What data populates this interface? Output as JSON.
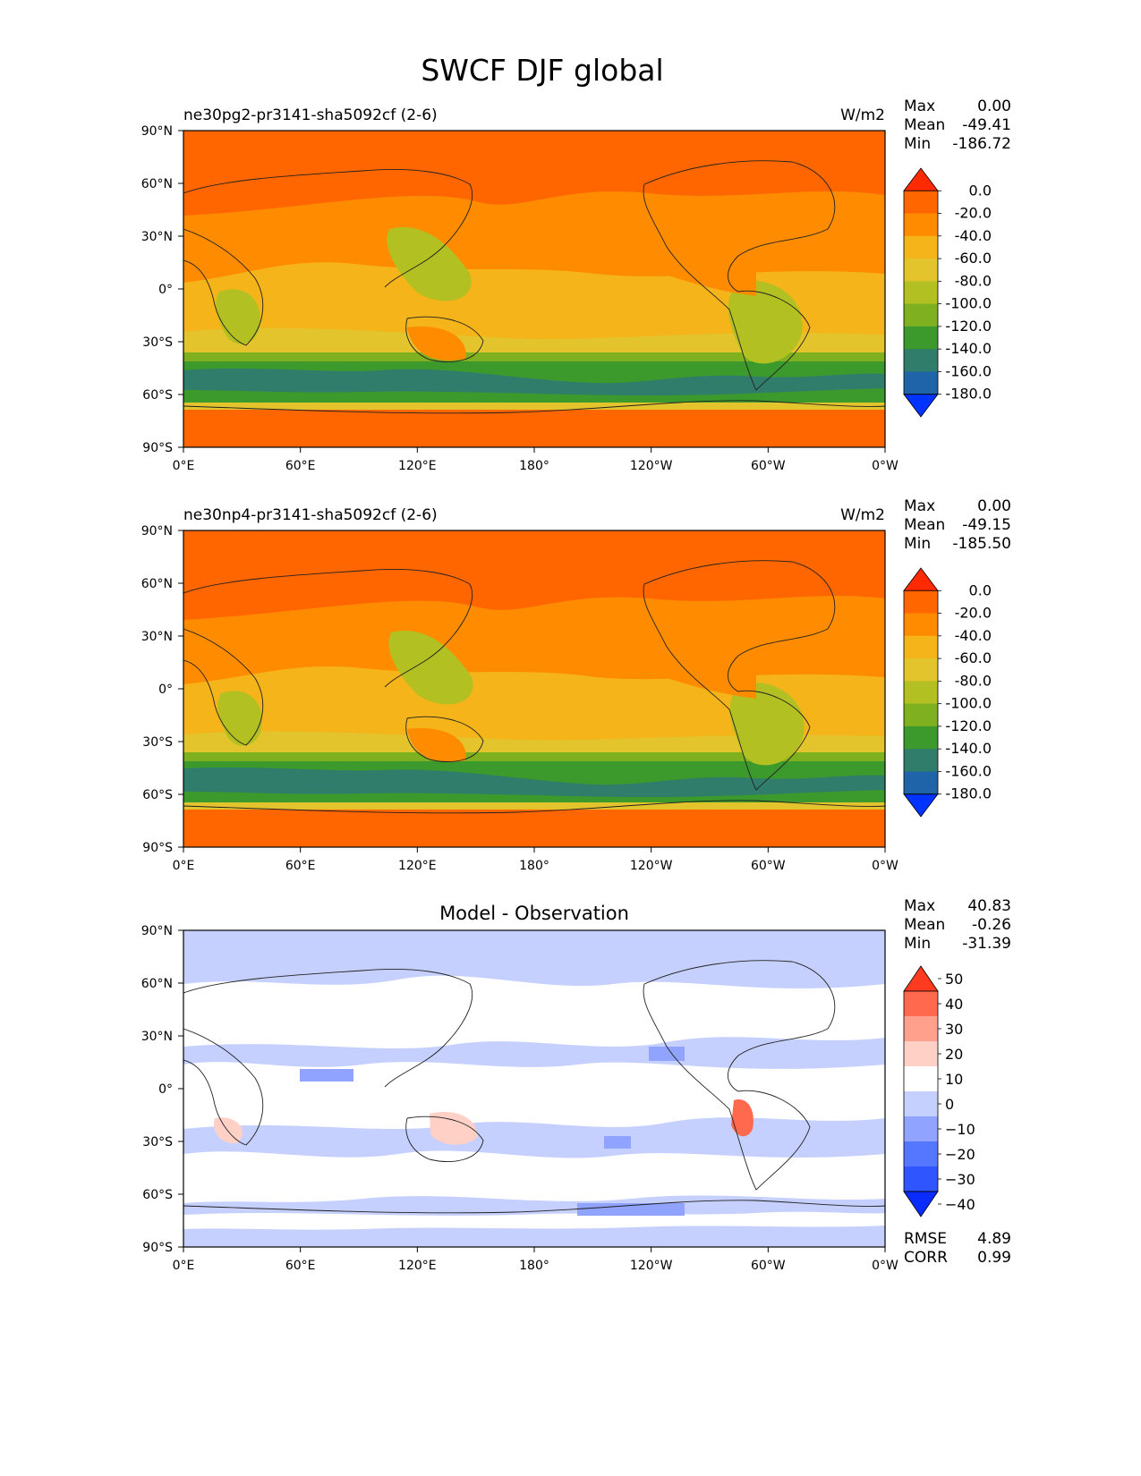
{
  "title": "SWCF DJF global",
  "panels": [
    {
      "name": "panel-test",
      "subtitle_left": "ne30pg2-pr3141-sha5092cf (2-6)",
      "subtitle_center": "",
      "units": "W/m2",
      "stats": [
        {
          "label": "Max",
          "value": "0.00"
        },
        {
          "label": "Mean",
          "value": "-49.41"
        },
        {
          "label": "Min",
          "value": "-186.72"
        }
      ],
      "colorbar": {
        "type": "abs",
        "labels": [
          "0.0",
          "-20.0",
          "-40.0",
          "-60.0",
          "-80.0",
          "-100.0",
          "-120.0",
          "-140.0",
          "-160.0",
          "-180.0"
        ],
        "colors": [
          "#ff2a00",
          "#ff6600",
          "#ff8c00",
          "#f4b41a",
          "#e3c42c",
          "#b2c022",
          "#7fb01f",
          "#3c9a2c",
          "#2f7d6a",
          "#1f64a8",
          "#0033ff"
        ]
      },
      "extras": []
    },
    {
      "name": "panel-ref",
      "subtitle_left": "ne30np4-pr3141-sha5092cf (2-6)",
      "subtitle_center": "",
      "units": "W/m2",
      "stats": [
        {
          "label": "Max",
          "value": "0.00"
        },
        {
          "label": "Mean",
          "value": "-49.15"
        },
        {
          "label": "Min",
          "value": "-185.50"
        }
      ],
      "colorbar": {
        "type": "abs",
        "labels": [
          "0.0",
          "-20.0",
          "-40.0",
          "-60.0",
          "-80.0",
          "-100.0",
          "-120.0",
          "-140.0",
          "-160.0",
          "-180.0"
        ],
        "colors": [
          "#ff2a00",
          "#ff6600",
          "#ff8c00",
          "#f4b41a",
          "#e3c42c",
          "#b2c022",
          "#7fb01f",
          "#3c9a2c",
          "#2f7d6a",
          "#1f64a8",
          "#0033ff"
        ]
      },
      "extras": []
    },
    {
      "name": "panel-diff",
      "subtitle_left": "",
      "subtitle_center": "Model - Observation",
      "units": "",
      "stats": [
        {
          "label": "Max",
          "value": "40.83"
        },
        {
          "label": "Mean",
          "value": "-0.26"
        },
        {
          "label": "Min",
          "value": "-31.39"
        }
      ],
      "colorbar": {
        "type": "diff",
        "labels": [
          "50",
          "40",
          "30",
          "20",
          "10",
          "0",
          "−10",
          "−20",
          "−30",
          "−40"
        ],
        "colors": [
          "#ff3b1f",
          "#ff6a4f",
          "#ffa08c",
          "#ffd0c6",
          "#ffffff",
          "#c6d0ff",
          "#8fa3ff",
          "#5577ff",
          "#2f55ff",
          "#0a2cff"
        ]
      },
      "extras": [
        {
          "label": "RMSE",
          "value": "4.89"
        },
        {
          "label": "CORR",
          "value": "0.99"
        }
      ]
    }
  ],
  "axes": {
    "lat_ticks": [
      "90°N",
      "60°N",
      "30°N",
      "0°",
      "30°S",
      "60°S",
      "90°S"
    ],
    "lon_ticks": [
      "0°E",
      "60°E",
      "120°E",
      "180°",
      "120°W",
      "60°W",
      "0°W"
    ]
  }
}
